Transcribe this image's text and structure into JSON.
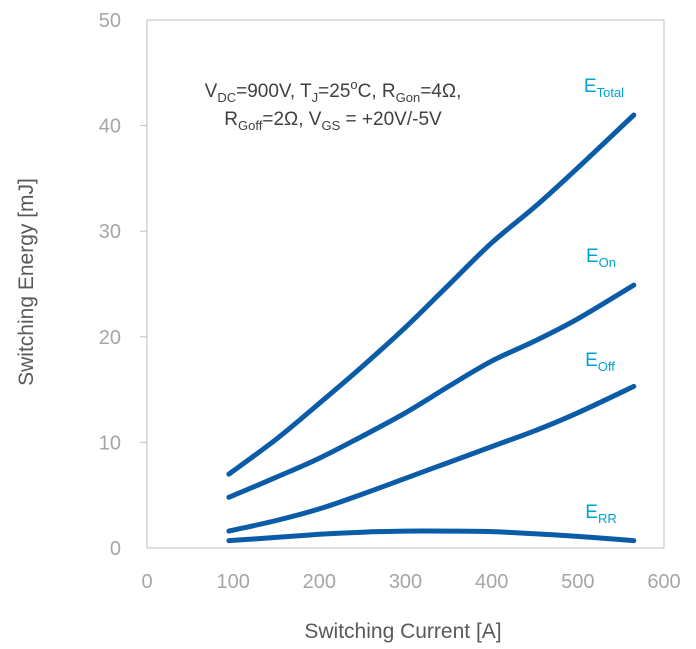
{
  "chart_data": {
    "type": "line",
    "xlabel": "Switching Current [A]",
    "ylabel": "Switching Energy [mJ]",
    "xlim": [
      0,
      600
    ],
    "ylim": [
      0,
      50
    ],
    "xticks": [
      "0",
      "100",
      "200",
      "300",
      "400",
      "500",
      "600"
    ],
    "yticks": [
      "0",
      "10",
      "20",
      "30",
      "40",
      "50"
    ],
    "grid": false,
    "annotation": {
      "line1": {
        "parts": [
          "V",
          "DC",
          "=900V, T",
          "J",
          "=25",
          "o",
          "C, R",
          "Gon",
          "=4Ω,"
        ]
      },
      "line2": {
        "parts": [
          "R",
          "Goff",
          "=2Ω,  V",
          "GS",
          " = +20V/-5V"
        ]
      }
    },
    "line_color": "#0b5ca8",
    "label_color": "#00a3d4",
    "series": [
      {
        "name": "E",
        "name_sub": "Total",
        "x": [
          95,
          150,
          200,
          250,
          300,
          350,
          400,
          450,
          500,
          565
        ],
        "y": [
          7,
          10.3,
          13.7,
          17.2,
          20.9,
          24.9,
          28.9,
          32.3,
          36.0,
          41
        ]
      },
      {
        "name": "E",
        "name_sub": "On",
        "x": [
          95,
          150,
          200,
          250,
          300,
          350,
          400,
          450,
          500,
          565
        ],
        "y": [
          4.8,
          6.7,
          8.5,
          10.6,
          12.8,
          15.3,
          17.7,
          19.6,
          21.7,
          24.9
        ]
      },
      {
        "name": "E",
        "name_sub": "Off",
        "x": [
          95,
          150,
          200,
          250,
          300,
          350,
          400,
          450,
          500,
          565
        ],
        "y": [
          1.6,
          2.6,
          3.7,
          5.1,
          6.6,
          8.1,
          9.6,
          11.1,
          12.8,
          15.3
        ]
      },
      {
        "name": "E",
        "name_sub": "RR",
        "x": [
          95,
          150,
          200,
          250,
          300,
          350,
          400,
          450,
          500,
          565
        ],
        "y": [
          0.7,
          1.0,
          1.3,
          1.5,
          1.6,
          1.6,
          1.55,
          1.35,
          1.1,
          0.7
        ]
      }
    ]
  }
}
